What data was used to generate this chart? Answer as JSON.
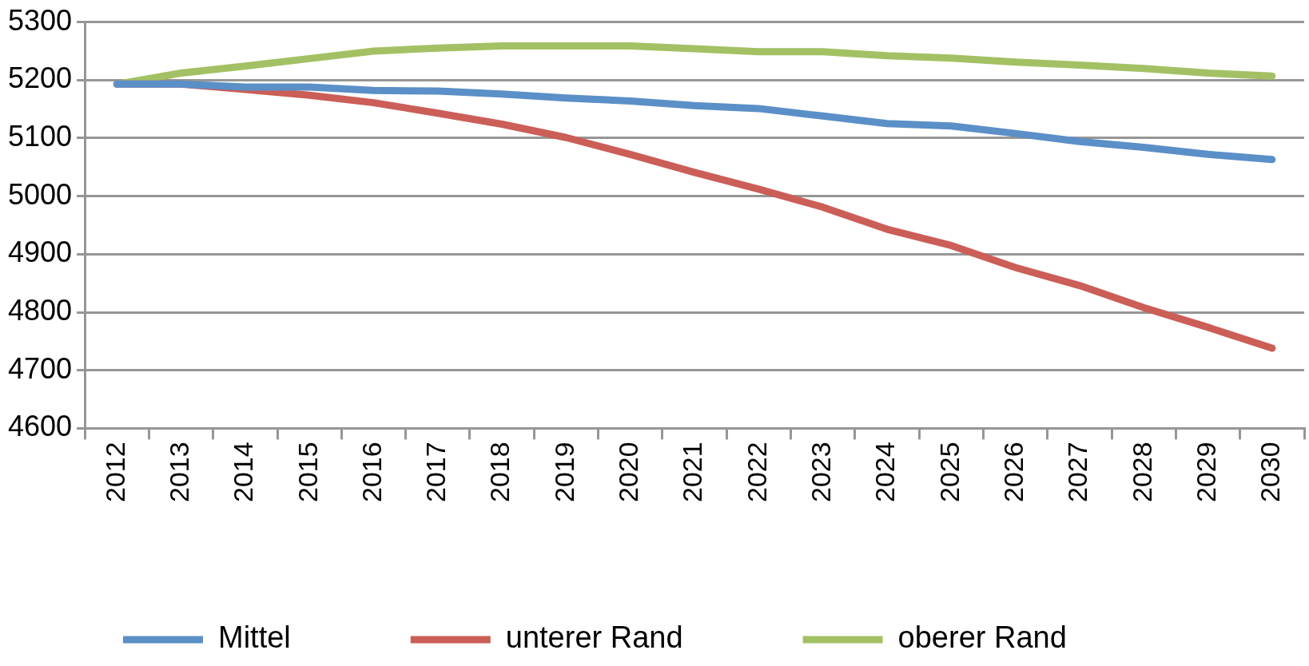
{
  "chart_data": {
    "type": "line",
    "categories": [
      "2012",
      "2013",
      "2014",
      "2015",
      "2016",
      "2017",
      "2018",
      "2019",
      "2020",
      "2021",
      "2022",
      "2023",
      "2024",
      "2025",
      "2026",
      "2027",
      "2028",
      "2029",
      "2030"
    ],
    "series": [
      {
        "name": "Mittel",
        "color": "#5b8fc7",
        "values": [
          5193,
          5193,
          5188,
          5188,
          5182,
          5181,
          5176,
          5169,
          5164,
          5156,
          5151,
          5138,
          5125,
          5121,
          5108,
          5094,
          5084,
          5072,
          5063
        ]
      },
      {
        "name": "unterer Rand",
        "color": "#cb5e57",
        "values": [
          5193,
          5193,
          5184,
          5174,
          5161,
          5143,
          5124,
          5101,
          5072,
          5041,
          5012,
          4981,
          4943,
          4915,
          4877,
          4846,
          4808,
          4774,
          4738
        ]
      },
      {
        "name": "oberer Rand",
        "color": "#a3c164",
        "values": [
          5193,
          5212,
          5224,
          5237,
          5250,
          5255,
          5259,
          5259,
          5259,
          5254,
          5249,
          5249,
          5242,
          5238,
          5231,
          5226,
          5220,
          5212,
          5207
        ]
      }
    ],
    "ylim": [
      4600,
      5300
    ],
    "yticks": [
      4600,
      4700,
      4800,
      4900,
      5000,
      5100,
      5200,
      5300
    ],
    "grid": "y",
    "legend": "bottom",
    "marker": "none",
    "line_style": "solid"
  }
}
